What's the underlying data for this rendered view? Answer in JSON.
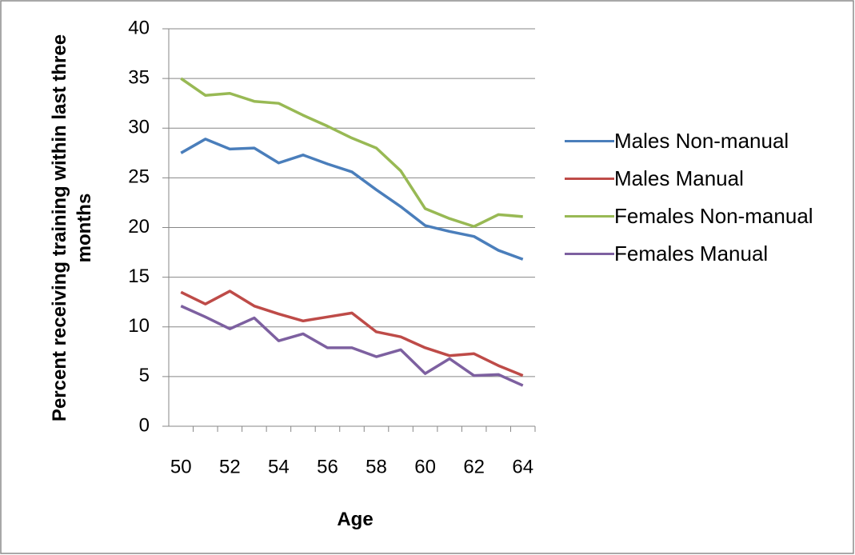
{
  "chart_data": {
    "type": "line",
    "y_label": "Percent receiving training within last three months",
    "x_label": "Age",
    "categories": [
      50,
      null,
      52,
      null,
      54,
      null,
      56,
      null,
      58,
      null,
      60,
      null,
      62,
      null,
      64
    ],
    "series": [
      {
        "name": "Males Non-manual",
        "color": "#4a7ebb",
        "values": [
          27.5,
          28.9,
          27.9,
          28.0,
          26.5,
          27.3,
          26.4,
          25.6,
          23.8,
          22.1,
          20.2,
          19.6,
          19.1,
          17.7,
          16.8
        ]
      },
      {
        "name": "Males Manual",
        "color": "#be4b48",
        "values": [
          13.5,
          12.3,
          13.6,
          12.1,
          11.3,
          10.6,
          11.0,
          11.4,
          9.5,
          9.0,
          7.9,
          7.1,
          7.3,
          6.1,
          5.1
        ]
      },
      {
        "name": "Females Non-manual",
        "color": "#98b954",
        "values": [
          35.0,
          33.3,
          33.5,
          32.7,
          32.5,
          31.3,
          30.2,
          29.0,
          28.0,
          25.7,
          21.9,
          20.9,
          20.1,
          21.3,
          21.1
        ]
      },
      {
        "name": "Females Manual",
        "color": "#7d60a0",
        "values": [
          12.1,
          11.0,
          9.8,
          10.9,
          8.6,
          9.3,
          7.9,
          7.9,
          7.0,
          7.7,
          5.3,
          6.8,
          5.1,
          5.2,
          4.1
        ]
      }
    ],
    "ylim": [
      0,
      40
    ],
    "yticks": [
      0,
      5,
      10,
      15,
      20,
      25,
      30,
      35,
      40
    ],
    "grid": true
  }
}
